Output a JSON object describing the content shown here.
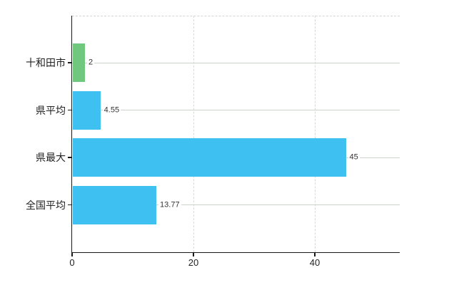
{
  "chart_data": {
    "type": "bar",
    "orientation": "horizontal",
    "title": "",
    "xlabel": "",
    "ylabel": "",
    "categories": [
      "十和田市",
      "県平均",
      "県最大",
      "全国平均"
    ],
    "values": [
      2,
      4.55,
      45,
      13.77
    ],
    "value_labels": [
      "2",
      "4.55",
      "45",
      "13.77"
    ],
    "bar_colors": [
      "#6fc87d",
      "#3ec1f0",
      "#3ec1f0",
      "#3ec1f0"
    ],
    "x_ticks": [
      0,
      20,
      40
    ],
    "x_tick_labels": [
      "0",
      "20",
      "40"
    ],
    "xlim": [
      0,
      54
    ],
    "grid": true,
    "legend_position": "none"
  },
  "colors": {
    "bar_green": "#6fc87d",
    "bar_blue": "#3ec1f0",
    "axis": "#1a1a1a",
    "h_gridline": "#ccd3cb",
    "v_gridline": "#d9d9d9",
    "top_border": "#d4d4d4",
    "category_text": "#222222",
    "value_text": "#333333",
    "tick_text": "#222222",
    "background": "#ffffff"
  }
}
